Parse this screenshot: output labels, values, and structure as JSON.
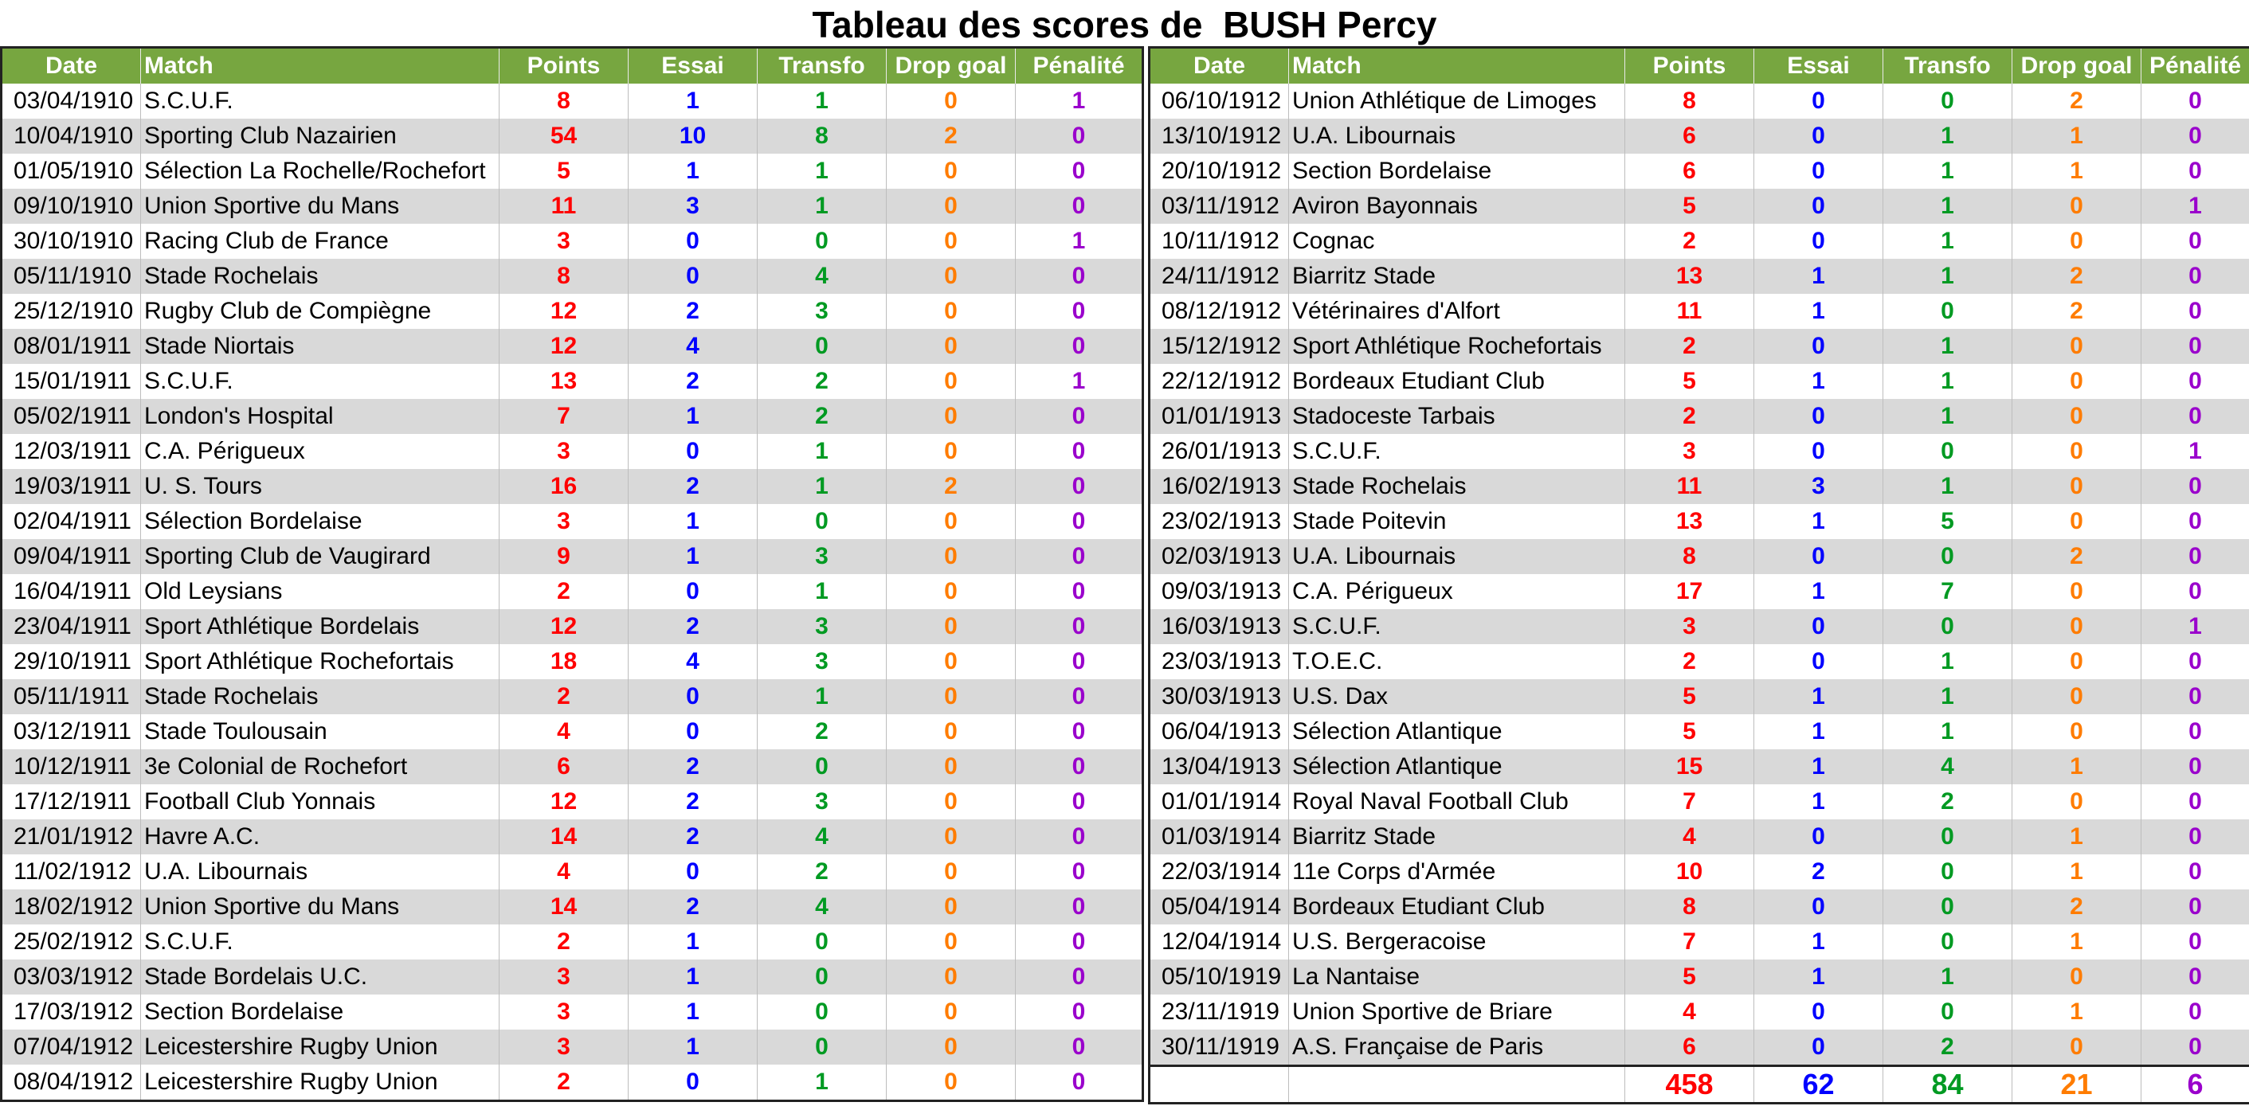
{
  "title": {
    "prefix": "Tableau des scores de",
    "player": "BUSH Percy"
  },
  "columns": [
    "Date",
    "Match",
    "Points",
    "Essai",
    "Transfo",
    "Drop goal",
    "Pénalité"
  ],
  "left_rows": [
    {
      "date": "03/04/1910",
      "match": "S.C.U.F.",
      "points": "8",
      "essai": "1",
      "transfo": "1",
      "drop": "0",
      "penalite": "1"
    },
    {
      "date": "10/04/1910",
      "match": "Sporting Club Nazairien",
      "points": "54",
      "essai": "10",
      "transfo": "8",
      "drop": "2",
      "penalite": "0"
    },
    {
      "date": "01/05/1910",
      "match": "Sélection La Rochelle/Rochefort",
      "points": "5",
      "essai": "1",
      "transfo": "1",
      "drop": "0",
      "penalite": "0"
    },
    {
      "date": "09/10/1910",
      "match": "Union Sportive du Mans",
      "points": "11",
      "essai": "3",
      "transfo": "1",
      "drop": "0",
      "penalite": "0"
    },
    {
      "date": "30/10/1910",
      "match": "Racing Club de France",
      "points": "3",
      "essai": "0",
      "transfo": "0",
      "drop": "0",
      "penalite": "1"
    },
    {
      "date": "05/11/1910",
      "match": "Stade Rochelais",
      "points": "8",
      "essai": "0",
      "transfo": "4",
      "drop": "0",
      "penalite": "0"
    },
    {
      "date": "25/12/1910",
      "match": "Rugby Club de Compiègne",
      "points": "12",
      "essai": "2",
      "transfo": "3",
      "drop": "0",
      "penalite": "0"
    },
    {
      "date": "08/01/1911",
      "match": "Stade Niortais",
      "points": "12",
      "essai": "4",
      "transfo": "0",
      "drop": "0",
      "penalite": "0"
    },
    {
      "date": "15/01/1911",
      "match": "S.C.U.F.",
      "points": "13",
      "essai": "2",
      "transfo": "2",
      "drop": "0",
      "penalite": "1"
    },
    {
      "date": "05/02/1911",
      "match": "London's Hospital",
      "points": "7",
      "essai": "1",
      "transfo": "2",
      "drop": "0",
      "penalite": "0"
    },
    {
      "date": "12/03/1911",
      "match": "C.A. Périgueux",
      "points": "3",
      "essai": "0",
      "transfo": "1",
      "drop": "0",
      "penalite": "0"
    },
    {
      "date": "19/03/1911",
      "match": "U. S. Tours",
      "points": "16",
      "essai": "2",
      "transfo": "1",
      "drop": "2",
      "penalite": "0"
    },
    {
      "date": "02/04/1911",
      "match": "Sélection Bordelaise",
      "points": "3",
      "essai": "1",
      "transfo": "0",
      "drop": "0",
      "penalite": "0"
    },
    {
      "date": "09/04/1911",
      "match": "Sporting Club de Vaugirard",
      "points": "9",
      "essai": "1",
      "transfo": "3",
      "drop": "0",
      "penalite": "0"
    },
    {
      "date": "16/04/1911",
      "match": "Old Leysians",
      "points": "2",
      "essai": "0",
      "transfo": "1",
      "drop": "0",
      "penalite": "0"
    },
    {
      "date": "23/04/1911",
      "match": "Sport Athlétique Bordelais",
      "points": "12",
      "essai": "2",
      "transfo": "3",
      "drop": "0",
      "penalite": "0"
    },
    {
      "date": "29/10/1911",
      "match": "Sport Athlétique Rochefortais",
      "points": "18",
      "essai": "4",
      "transfo": "3",
      "drop": "0",
      "penalite": "0"
    },
    {
      "date": "05/11/1911",
      "match": "Stade Rochelais",
      "points": "2",
      "essai": "0",
      "transfo": "1",
      "drop": "0",
      "penalite": "0"
    },
    {
      "date": "03/12/1911",
      "match": "Stade Toulousain",
      "points": "4",
      "essai": "0",
      "transfo": "2",
      "drop": "0",
      "penalite": "0"
    },
    {
      "date": "10/12/1911",
      "match": "3e Colonial de Rochefort",
      "points": "6",
      "essai": "2",
      "transfo": "0",
      "drop": "0",
      "penalite": "0"
    },
    {
      "date": "17/12/1911",
      "match": "Football Club Yonnais",
      "points": "12",
      "essai": "2",
      "transfo": "3",
      "drop": "0",
      "penalite": "0"
    },
    {
      "date": "21/01/1912",
      "match": "Havre A.C.",
      "points": "14",
      "essai": "2",
      "transfo": "4",
      "drop": "0",
      "penalite": "0"
    },
    {
      "date": "11/02/1912",
      "match": "U.A. Libournais",
      "points": "4",
      "essai": "0",
      "transfo": "2",
      "drop": "0",
      "penalite": "0"
    },
    {
      "date": "18/02/1912",
      "match": "Union Sportive du Mans",
      "points": "14",
      "essai": "2",
      "transfo": "4",
      "drop": "0",
      "penalite": "0"
    },
    {
      "date": "25/02/1912",
      "match": "S.C.U.F.",
      "points": "2",
      "essai": "1",
      "transfo": "0",
      "drop": "0",
      "penalite": "0"
    },
    {
      "date": "03/03/1912",
      "match": "Stade Bordelais U.C.",
      "points": "3",
      "essai": "1",
      "transfo": "0",
      "drop": "0",
      "penalite": "0"
    },
    {
      "date": "17/03/1912",
      "match": "Section Bordelaise",
      "points": "3",
      "essai": "1",
      "transfo": "0",
      "drop": "0",
      "penalite": "0"
    },
    {
      "date": "07/04/1912",
      "match": "Leicestershire Rugby Union",
      "points": "3",
      "essai": "1",
      "transfo": "0",
      "drop": "0",
      "penalite": "0"
    },
    {
      "date": "08/04/1912",
      "match": "Leicestershire Rugby Union",
      "points": "2",
      "essai": "0",
      "transfo": "1",
      "drop": "0",
      "penalite": "0"
    }
  ],
  "right_rows": [
    {
      "date": "06/10/1912",
      "match": "Union Athlétique de Limoges",
      "points": "8",
      "essai": "0",
      "transfo": "0",
      "drop": "2",
      "penalite": "0"
    },
    {
      "date": "13/10/1912",
      "match": "U.A. Libournais",
      "points": "6",
      "essai": "0",
      "transfo": "1",
      "drop": "1",
      "penalite": "0"
    },
    {
      "date": "20/10/1912",
      "match": "Section Bordelaise",
      "points": "6",
      "essai": "0",
      "transfo": "1",
      "drop": "1",
      "penalite": "0"
    },
    {
      "date": "03/11/1912",
      "match": "Aviron Bayonnais",
      "points": "5",
      "essai": "0",
      "transfo": "1",
      "drop": "0",
      "penalite": "1"
    },
    {
      "date": "10/11/1912",
      "match": "Cognac",
      "points": "2",
      "essai": "0",
      "transfo": "1",
      "drop": "0",
      "penalite": "0"
    },
    {
      "date": "24/11/1912",
      "match": "Biarritz Stade",
      "points": "13",
      "essai": "1",
      "transfo": "1",
      "drop": "2",
      "penalite": "0"
    },
    {
      "date": "08/12/1912",
      "match": "Vétérinaires d'Alfort",
      "points": "11",
      "essai": "1",
      "transfo": "0",
      "drop": "2",
      "penalite": "0"
    },
    {
      "date": "15/12/1912",
      "match": "Sport Athlétique Rochefortais",
      "points": "2",
      "essai": "0",
      "transfo": "1",
      "drop": "0",
      "penalite": "0"
    },
    {
      "date": "22/12/1912",
      "match": "Bordeaux Etudiant Club",
      "points": "5",
      "essai": "1",
      "transfo": "1",
      "drop": "0",
      "penalite": "0"
    },
    {
      "date": "01/01/1913",
      "match": "Stadoceste Tarbais",
      "points": "2",
      "essai": "0",
      "transfo": "1",
      "drop": "0",
      "penalite": "0"
    },
    {
      "date": "26/01/1913",
      "match": "S.C.U.F.",
      "points": "3",
      "essai": "0",
      "transfo": "0",
      "drop": "0",
      "penalite": "1"
    },
    {
      "date": "16/02/1913",
      "match": "Stade Rochelais",
      "points": "11",
      "essai": "3",
      "transfo": "1",
      "drop": "0",
      "penalite": "0"
    },
    {
      "date": "23/02/1913",
      "match": "Stade Poitevin",
      "points": "13",
      "essai": "1",
      "transfo": "5",
      "drop": "0",
      "penalite": "0"
    },
    {
      "date": "02/03/1913",
      "match": "U.A. Libournais",
      "points": "8",
      "essai": "0",
      "transfo": "0",
      "drop": "2",
      "penalite": "0"
    },
    {
      "date": "09/03/1913",
      "match": "C.A. Périgueux",
      "points": "17",
      "essai": "1",
      "transfo": "7",
      "drop": "0",
      "penalite": "0"
    },
    {
      "date": "16/03/1913",
      "match": "S.C.U.F.",
      "points": "3",
      "essai": "0",
      "transfo": "0",
      "drop": "0",
      "penalite": "1"
    },
    {
      "date": "23/03/1913",
      "match": "T.O.E.C.",
      "points": "2",
      "essai": "0",
      "transfo": "1",
      "drop": "0",
      "penalite": "0"
    },
    {
      "date": "30/03/1913",
      "match": "U.S. Dax",
      "points": "5",
      "essai": "1",
      "transfo": "1",
      "drop": "0",
      "penalite": "0"
    },
    {
      "date": "06/04/1913",
      "match": "Sélection Atlantique",
      "points": "5",
      "essai": "1",
      "transfo": "1",
      "drop": "0",
      "penalite": "0"
    },
    {
      "date": "13/04/1913",
      "match": "Sélection Atlantique",
      "points": "15",
      "essai": "1",
      "transfo": "4",
      "drop": "1",
      "penalite": "0"
    },
    {
      "date": "01/01/1914",
      "match": "Royal Naval Football Club",
      "points": "7",
      "essai": "1",
      "transfo": "2",
      "drop": "0",
      "penalite": "0"
    },
    {
      "date": "01/03/1914",
      "match": "Biarritz Stade",
      "points": "4",
      "essai": "0",
      "transfo": "0",
      "drop": "1",
      "penalite": "0"
    },
    {
      "date": "22/03/1914",
      "match": "11e Corps d'Armée",
      "points": "10",
      "essai": "2",
      "transfo": "0",
      "drop": "1",
      "penalite": "0"
    },
    {
      "date": "05/04/1914",
      "match": "Bordeaux Etudiant Club",
      "points": "8",
      "essai": "0",
      "transfo": "0",
      "drop": "2",
      "penalite": "0"
    },
    {
      "date": "12/04/1914",
      "match": "U.S. Bergeracoise",
      "points": "7",
      "essai": "1",
      "transfo": "0",
      "drop": "1",
      "penalite": "0"
    },
    {
      "date": "05/10/1919",
      "match": "La Nantaise",
      "points": "5",
      "essai": "1",
      "transfo": "1",
      "drop": "0",
      "penalite": "0"
    },
    {
      "date": "23/11/1919",
      "match": "Union Sportive de Briare",
      "points": "4",
      "essai": "0",
      "transfo": "0",
      "drop": "1",
      "penalite": "0"
    },
    {
      "date": "30/11/1919",
      "match": "A.S. Française de Paris",
      "points": "6",
      "essai": "0",
      "transfo": "2",
      "drop": "0",
      "penalite": "0"
    }
  ],
  "totals": {
    "points": "458",
    "essai": "62",
    "transfo": "84",
    "drop": "21",
    "penalite": "6"
  },
  "colors": {
    "header_bg": "#77a640",
    "header_text": "#ffffff",
    "row_alt": "#d9d9d9",
    "points": "#ff0000",
    "essai": "#0000ff",
    "transfo": "#009a22",
    "drop": "#ff7c00",
    "penalite": "#9a00cc"
  }
}
